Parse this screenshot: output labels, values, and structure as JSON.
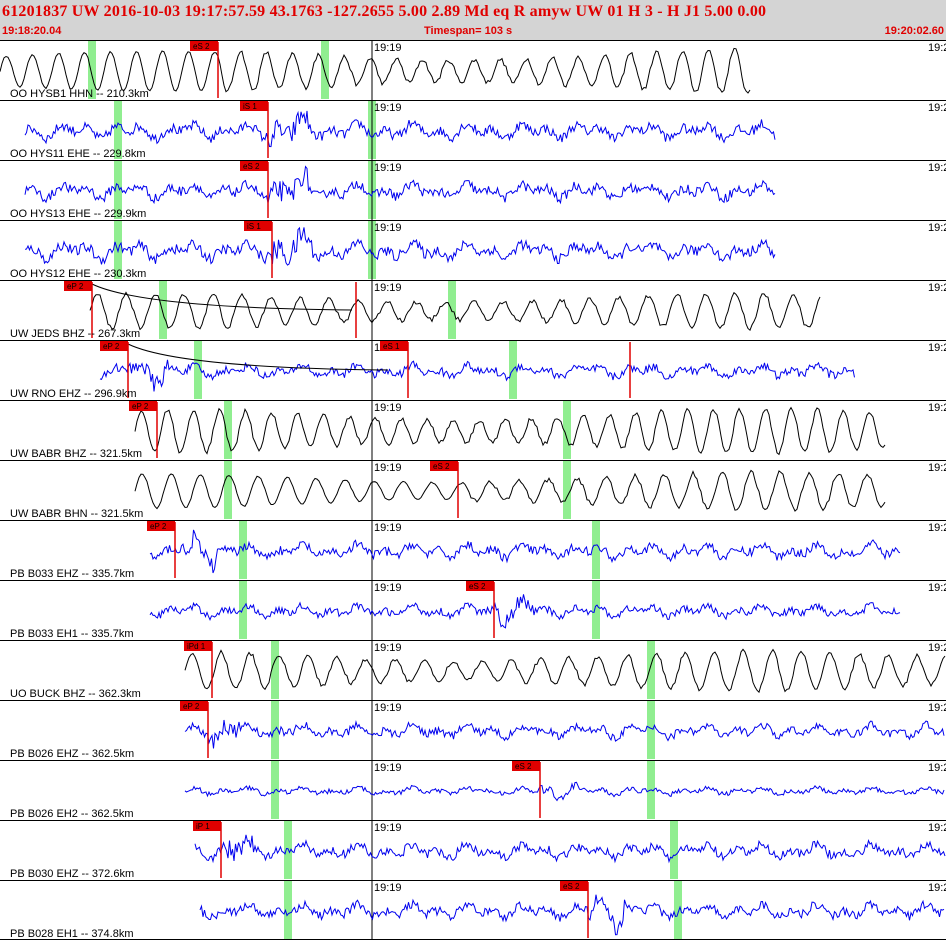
{
  "header": {
    "title": "61201837 UW 2016-10-03 19:17:57.59   43.1763 -127.2655   5.00  2.89 Md  eq  R amyw     UW 01  H  3  -  H J1    5.00  0.00",
    "start_time": "19:18:20.04",
    "timespan": "Timespan= 103 s",
    "end_time": "19:20:02.60"
  },
  "colors": {
    "header_bg": "#d4d4d4",
    "header_text": "#e00000",
    "trace_black": "#000000",
    "trace_blue": "#0000ee",
    "pick_red": "#e00000",
    "marker_green": "#90ee90"
  },
  "time_tick_label": "19:19",
  "right_edge_label": "19:2",
  "panels": [
    {
      "channel": "OO HYSB1 HHN -- 210.3km",
      "color": "black",
      "style": "smooth",
      "start": 0,
      "end": 750,
      "onset": 218,
      "amp": 20,
      "pick": {
        "label": "eS 2",
        "x": 218
      },
      "green": [
        92,
        325
      ]
    },
    {
      "channel": "OO HYS11 EHE -- 229.8km",
      "color": "blue",
      "style": "noisy",
      "start": 25,
      "end": 775,
      "onset": 268,
      "amp": 11,
      "pick": {
        "label": "iS 1",
        "x": 268
      },
      "green": [
        118,
        372
      ]
    },
    {
      "channel": "OO HYS13 EHE -- 229.9km",
      "color": "blue",
      "style": "noisy",
      "start": 25,
      "end": 775,
      "onset": 268,
      "amp": 11,
      "pick": {
        "label": "eS 2",
        "x": 268
      },
      "green": [
        118,
        372
      ]
    },
    {
      "channel": "OO HYS12 EHE -- 230.3km",
      "color": "blue",
      "style": "noisy",
      "start": 25,
      "end": 775,
      "onset": 272,
      "amp": 12,
      "pick": {
        "label": "iS 1",
        "x": 272
      },
      "green": [
        118,
        372
      ]
    },
    {
      "channel": "UW JEDS BHZ -- 267.3km",
      "color": "black",
      "style": "smooth",
      "start": 90,
      "end": 820,
      "onset": 92,
      "amp": 16,
      "pick": {
        "label": "eP 2",
        "x": 92
      },
      "pick2": {
        "label": "",
        "x": 356
      },
      "green": [
        163,
        452
      ],
      "curve": true
    },
    {
      "channel": "UW RNO EHZ -- 296.9km",
      "color": "blue",
      "style": "noisy",
      "start": 100,
      "end": 855,
      "onset": 128,
      "amp": 9,
      "pick": {
        "label": "eP 2",
        "x": 128
      },
      "pick2": {
        "label": "eS 1",
        "x": 408
      },
      "pick3": {
        "label": "",
        "x": 630
      },
      "green": [
        198,
        513
      ],
      "curve": true
    },
    {
      "channel": "UW BABR BHZ -- 321.5km",
      "color": "black",
      "style": "smooth",
      "start": 135,
      "end": 885,
      "onset": 157,
      "amp": 20,
      "pick": {
        "label": "eP 2",
        "x": 157
      },
      "green": [
        228,
        567
      ]
    },
    {
      "channel": "UW BABR BHN -- 321.5km",
      "color": "black",
      "style": "smooth",
      "start": 135,
      "end": 885,
      "onset": 458,
      "amp": 17,
      "pick": {
        "label": "eS 2",
        "x": 458
      },
      "green": [
        228,
        567
      ]
    },
    {
      "channel": "PB B033 EHZ -- 335.7km",
      "color": "blue",
      "style": "noisy",
      "start": 150,
      "end": 900,
      "onset": 175,
      "amp": 10,
      "pick": {
        "label": "eP 2",
        "x": 175
      },
      "green": [
        243,
        596
      ]
    },
    {
      "channel": "PB B033 EH1 -- 335.7km",
      "color": "blue",
      "style": "noisy",
      "start": 150,
      "end": 900,
      "onset": 494,
      "amp": 8,
      "pick": {
        "label": "eS 2",
        "x": 494
      },
      "green": [
        243,
        596
      ]
    },
    {
      "channel": "UO BUCK BHZ -- 362.3km",
      "color": "black",
      "style": "smooth",
      "start": 185,
      "end": 945,
      "onset": 212,
      "amp": 18,
      "pick": {
        "label": "iPd 1",
        "x": 212
      },
      "green": [
        275,
        651
      ]
    },
    {
      "channel": "PB B026 EHZ -- 362.5km",
      "color": "blue",
      "style": "noisy",
      "start": 185,
      "end": 945,
      "onset": 208,
      "amp": 9,
      "pick": {
        "label": "eP 2",
        "x": 208
      },
      "green": [
        275,
        651
      ]
    },
    {
      "channel": "PB B026 EH2 -- 362.5km",
      "color": "blue",
      "style": "noisy",
      "start": 185,
      "end": 945,
      "onset": 540,
      "amp": 5,
      "pick": {
        "label": "eS 2",
        "x": 540
      },
      "green": [
        275,
        651
      ]
    },
    {
      "channel": "PB B030 EHZ -- 372.6km",
      "color": "blue",
      "style": "noisy",
      "start": 195,
      "end": 945,
      "onset": 221,
      "amp": 10,
      "pick": {
        "label": "iP 1",
        "x": 221
      },
      "green": [
        288,
        674
      ]
    },
    {
      "channel": "PB B028 EH1 -- 374.8km",
      "color": "blue",
      "style": "noisy",
      "start": 200,
      "end": 945,
      "onset": 588,
      "amp": 10,
      "pick": {
        "label": "eS 2",
        "x": 588
      },
      "green": [
        288,
        678
      ]
    }
  ]
}
